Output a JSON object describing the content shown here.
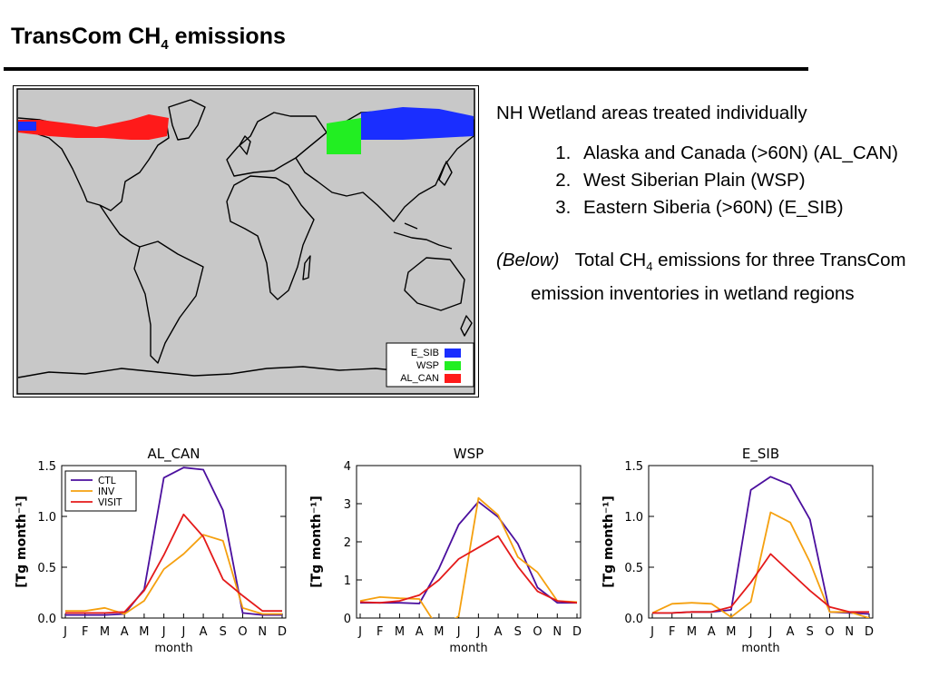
{
  "header": {
    "title_pre": "TransCom CH",
    "title_sub": "4",
    "title_post": " emissions"
  },
  "notes": {
    "intro": "NH Wetland areas treated individually",
    "items": [
      "Alaska and Canada (>60N) (AL_CAN)",
      "West Siberian Plain (WSP)",
      "Eastern Siberia (>60N) (E_SIB)"
    ],
    "below_label": "(Below)",
    "below_pre": "Total CH",
    "below_sub": "4",
    "below_post": " emissions for three TransCom emission inventories in wetland regions"
  },
  "map": {
    "legend": [
      {
        "label": "E_SIB",
        "color": "#1a2eff"
      },
      {
        "label": "WSP",
        "color": "#22ee22"
      },
      {
        "label": "AL_CAN",
        "color": "#ff1a1a"
      }
    ]
  },
  "chart_data": [
    {
      "type": "line",
      "title": "AL_CAN",
      "xlabel": "month",
      "ylabel": "[Tg month⁻¹]",
      "categories": [
        "J",
        "F",
        "M",
        "A",
        "M",
        "J",
        "J",
        "A",
        "S",
        "O",
        "N",
        "D"
      ],
      "yticks": [
        "0.0",
        "0.5",
        "1.0",
        "1.5"
      ],
      "ylim": [
        0,
        1.5
      ],
      "legend_position": "top-left",
      "series": [
        {
          "name": "CTL",
          "color": "#4b0f9e",
          "values": [
            0.03,
            0.03,
            0.03,
            0.04,
            0.28,
            1.38,
            1.48,
            1.46,
            1.06,
            0.05,
            0.03,
            0.03
          ]
        },
        {
          "name": "INV",
          "color": "#f5a00f",
          "values": [
            0.07,
            0.07,
            0.1,
            0.04,
            0.17,
            0.48,
            0.63,
            0.82,
            0.76,
            0.1,
            0.04,
            0.04
          ]
        },
        {
          "name": "VISIT",
          "color": "#e41a1a",
          "values": [
            0.05,
            0.05,
            0.05,
            0.06,
            0.27,
            0.62,
            1.02,
            0.8,
            0.38,
            0.22,
            0.07,
            0.07
          ]
        }
      ]
    },
    {
      "type": "line",
      "title": "WSP",
      "xlabel": "month",
      "ylabel": "[Tg month⁻¹]",
      "categories": [
        "J",
        "F",
        "M",
        "A",
        "M",
        "J",
        "J",
        "A",
        "S",
        "O",
        "N",
        "D"
      ],
      "yticks": [
        "0",
        "1",
        "2",
        "3",
        "4"
      ],
      "ylim": [
        0,
        4
      ],
      "series": [
        {
          "name": "CTL",
          "color": "#4b0f9e",
          "values": [
            0.4,
            0.4,
            0.4,
            0.38,
            1.3,
            2.45,
            3.05,
            2.65,
            1.95,
            0.8,
            0.4,
            0.4
          ]
        },
        {
          "name": "INV",
          "color": "#f5a00f",
          "values": [
            0.45,
            0.55,
            0.52,
            0.5,
            -0.3,
            0.05,
            3.15,
            2.7,
            1.6,
            1.2,
            0.45,
            0.42
          ]
        },
        {
          "name": "VISIT",
          "color": "#e41a1a",
          "values": [
            0.42,
            0.4,
            0.45,
            0.6,
            1.0,
            1.55,
            1.85,
            2.15,
            1.35,
            0.7,
            0.45,
            0.4
          ]
        }
      ]
    },
    {
      "type": "line",
      "title": "E_SIB",
      "xlabel": "month",
      "ylabel": "[Tg month⁻¹]",
      "categories": [
        "J",
        "F",
        "M",
        "A",
        "M",
        "J",
        "J",
        "A",
        "S",
        "O",
        "N",
        "D"
      ],
      "yticks": [
        "0.0",
        "0.5",
        "1.0",
        "1.5"
      ],
      "ylim": [
        0,
        1.5
      ],
      "series": [
        {
          "name": "CTL",
          "color": "#4b0f9e",
          "values": [
            0.05,
            0.05,
            0.06,
            0.06,
            0.08,
            1.26,
            1.39,
            1.31,
            0.97,
            0.06,
            0.05,
            0.04
          ]
        },
        {
          "name": "INV",
          "color": "#f5a00f",
          "values": [
            0.05,
            0.14,
            0.15,
            0.14,
            0.01,
            0.16,
            1.04,
            0.94,
            0.55,
            0.06,
            0.06,
            0.0
          ]
        },
        {
          "name": "VISIT",
          "color": "#e41a1a",
          "values": [
            0.05,
            0.05,
            0.06,
            0.06,
            0.11,
            0.35,
            0.63,
            0.45,
            0.27,
            0.11,
            0.06,
            0.06
          ]
        }
      ]
    }
  ]
}
